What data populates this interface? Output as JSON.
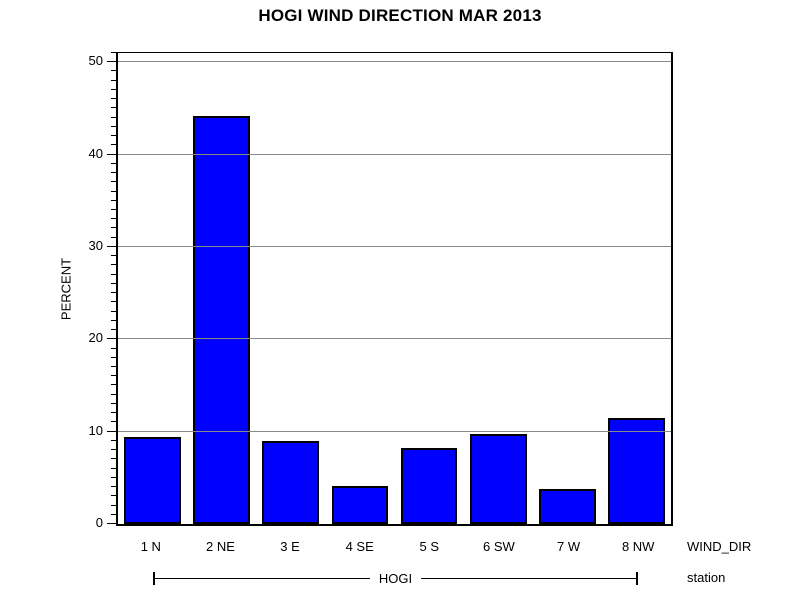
{
  "title": "HOGI WIND DIRECTION MAR 2013",
  "y_axis": {
    "label": "PERCENT"
  },
  "x_axis": {
    "label": "WIND_DIR"
  },
  "footer": {
    "group_label": "HOGI",
    "axis_label": "station"
  },
  "colors": {
    "bar_fill": "#0000ff",
    "bar_border": "#000000",
    "gridline": "#888888",
    "frame": "#000000"
  },
  "chart_data": {
    "type": "bar",
    "title": "HOGI WIND DIRECTION MAR 2013",
    "categories": [
      "1 N",
      "2 NE",
      "3 E",
      "4 SE",
      "5 S",
      "6 SW",
      "7 W",
      "8 NW"
    ],
    "values": [
      9.4,
      44.2,
      9.0,
      4.1,
      8.2,
      9.8,
      3.8,
      11.5
    ],
    "xlabel": "WIND_DIR",
    "ylabel": "PERCENT",
    "ylim": [
      0,
      51
    ],
    "yticks_major": [
      0,
      10,
      20,
      30,
      40,
      50
    ],
    "ytick_minor_step": 1,
    "gridlines": [
      10,
      20,
      30,
      40,
      50
    ],
    "legend": "none",
    "grid": "horizontal-gray-reference-lines",
    "footer_group": "HOGI",
    "footer_label": "station"
  }
}
